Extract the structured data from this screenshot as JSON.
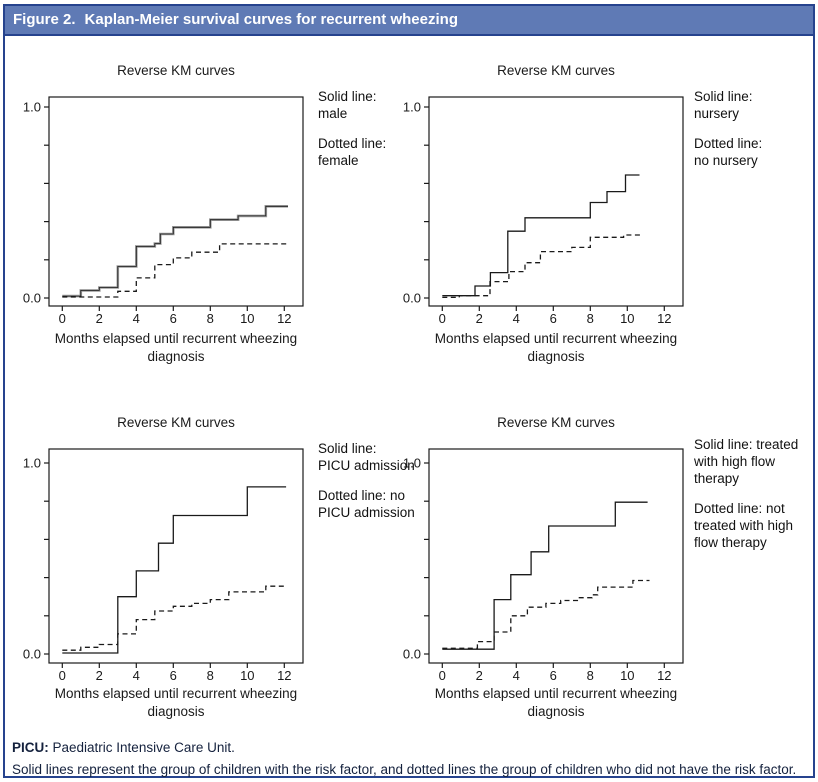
{
  "header": {
    "label": "Figure 2.",
    "title": "Kaplan-Meier survival curves for recurrent wheezing"
  },
  "footer": {
    "abbr_label": "PICU:",
    "abbr_text": "Paediatric Intensive Care Unit.",
    "note": "Solid lines represent the group of children with the risk factor, and dotted lines the group of children who did not have the risk factor."
  },
  "colors": {
    "header_bg": "#5F7AB5",
    "border_navy": "#26438E",
    "axis_black": "#1a1a1a",
    "solid_gray_highlight": "#9c9c9c",
    "text_dark": "#111111"
  },
  "chart_data": [
    {
      "id": "sex",
      "type": "line",
      "title": "Reverse KM curves",
      "xlabel": "Months elapsed until recurrent wheezing diagnosis",
      "xlabel_lines": [
        "Months elapsed until recurrent wheezing",
        "diagnosis"
      ],
      "xlim": [
        0,
        12.5
      ],
      "xticks": [
        0,
        2,
        4,
        6,
        8,
        10,
        12
      ],
      "ylim": [
        0,
        1
      ],
      "yticks": [
        0,
        0.2,
        0.4,
        0.6,
        0.8,
        1
      ],
      "ytick_labels": [
        "0.0",
        "",
        "",
        "",
        "",
        "1.0"
      ],
      "grid": false,
      "legend_position": "right",
      "legend": {
        "solid": "Solid line:\nmale",
        "dotted": "Dotted line:\nfemale"
      },
      "series": [
        {
          "name": "male",
          "style": "solid",
          "highlight": true,
          "points": [
            [
              0,
              0.01
            ],
            [
              1,
              0.04
            ],
            [
              2,
              0.055
            ],
            [
              3,
              0.165
            ],
            [
              4,
              0.27
            ],
            [
              5,
              0.285
            ],
            [
              5.3,
              0.335
            ],
            [
              6,
              0.37
            ],
            [
              8,
              0.41
            ],
            [
              9.5,
              0.43
            ],
            [
              11,
              0.48
            ]
          ],
          "end_x": 12.2
        },
        {
          "name": "female",
          "style": "dotted",
          "highlight": false,
          "points": [
            [
              0,
              0.005
            ],
            [
              3,
              0.035
            ],
            [
              4,
              0.105
            ],
            [
              5,
              0.175
            ],
            [
              6,
              0.21
            ],
            [
              7,
              0.24
            ],
            [
              8.5,
              0.283
            ]
          ],
          "end_x": 12.2
        }
      ]
    },
    {
      "id": "nursery",
      "type": "line",
      "title": "Reverse KM curves",
      "xlabel": "Months elapsed until recurrent wheezing diagnosis",
      "xlabel_lines": [
        "Months elapsed until recurrent wheezing",
        "diagnosis"
      ],
      "xlim": [
        0,
        12.5
      ],
      "xticks": [
        0,
        2,
        4,
        6,
        8,
        10,
        12
      ],
      "ylim": [
        0,
        1
      ],
      "yticks": [
        0,
        0.2,
        0.4,
        0.6,
        0.8,
        1
      ],
      "ytick_labels": [
        "0.0",
        "",
        "",
        "",
        "",
        "1.0"
      ],
      "grid": false,
      "legend_position": "right",
      "legend": {
        "solid": "Solid line:\nnursery",
        "dotted": "Dotted line:\nno nursery"
      },
      "series": [
        {
          "name": "nursery",
          "style": "solid",
          "highlight": false,
          "points": [
            [
              0,
              0.012
            ],
            [
              1.77,
              0.063
            ],
            [
              2.6,
              0.133
            ],
            [
              3.54,
              0.35
            ],
            [
              4.47,
              0.42
            ],
            [
              8,
              0.5
            ],
            [
              8.9,
              0.557
            ],
            [
              9.9,
              0.644
            ]
          ],
          "end_x": 10.66
        },
        {
          "name": "no nursery",
          "style": "dotted",
          "highlight": false,
          "points": [
            [
              0,
              0.003
            ],
            [
              0.92,
              0.012
            ],
            [
              2.58,
              0.086
            ],
            [
              3.6,
              0.138
            ],
            [
              4.47,
              0.185
            ],
            [
              5.3,
              0.243
            ],
            [
              7.0,
              0.265
            ],
            [
              8.0,
              0.318
            ],
            [
              9.8,
              0.33
            ]
          ],
          "end_x": 10.8
        }
      ]
    },
    {
      "id": "picu",
      "type": "line",
      "title": "Reverse KM curves",
      "xlabel": "Months elapsed until recurrent wheezing diagnosis",
      "xlabel_lines": [
        "Months elapsed until recurrent wheezing",
        "diagnosis"
      ],
      "xlim": [
        0,
        12.5
      ],
      "xticks": [
        0,
        2,
        4,
        6,
        8,
        10,
        12
      ],
      "ylim": [
        0,
        1
      ],
      "yticks": [
        0,
        0.2,
        0.4,
        0.6,
        0.8,
        1
      ],
      "ytick_labels": [
        "0.0",
        "",
        "",
        "",
        "",
        "1.0"
      ],
      "grid": false,
      "legend_position": "right",
      "legend": {
        "solid": "Solid line:\nPICU admission",
        "dotted": "Dotted line: no\nPICU admission"
      },
      "series": [
        {
          "name": "PICU admission",
          "style": "solid",
          "highlight": false,
          "points": [
            [
              0,
              0.005
            ],
            [
              3,
              0.3
            ],
            [
              4,
              0.435
            ],
            [
              5.2,
              0.58
            ],
            [
              6,
              0.725
            ],
            [
              10,
              0.875
            ]
          ],
          "end_x": 12.1
        },
        {
          "name": "no PICU admission",
          "style": "dotted",
          "highlight": false,
          "points": [
            [
              0,
              0.02
            ],
            [
              1,
              0.035
            ],
            [
              2,
              0.05
            ],
            [
              3,
              0.105
            ],
            [
              4,
              0.18
            ],
            [
              5,
              0.225
            ],
            [
              6,
              0.25
            ],
            [
              7,
              0.265
            ],
            [
              8,
              0.285
            ],
            [
              9,
              0.325
            ],
            [
              11,
              0.355
            ]
          ],
          "end_x": 12.1
        }
      ]
    },
    {
      "id": "high-flow",
      "type": "line",
      "title": "Reverse KM curves",
      "xlabel": "Months elapsed until recurrent wheezing diagnosis",
      "xlabel_lines": [
        "Months elapsed until recurrent wheezing",
        "diagnosis"
      ],
      "xlim": [
        0,
        12.5
      ],
      "xticks": [
        0,
        2,
        4,
        6,
        8,
        10,
        12
      ],
      "ylim": [
        0,
        1
      ],
      "yticks": [
        0,
        0.2,
        0.4,
        0.6,
        0.8,
        1
      ],
      "ytick_labels": [
        "0.0",
        "",
        "",
        "",
        "",
        "1.0"
      ],
      "grid": false,
      "legend_position": "right",
      "legend": {
        "solid": "Solid line: treated\nwith high flow\ntherapy",
        "dotted": "Dotted line: not\ntreated with high\nflow therapy"
      },
      "series": [
        {
          "name": "treated with high flow therapy",
          "style": "solid",
          "highlight": false,
          "points": [
            [
              0,
              0.025
            ],
            [
              2.8,
              0.285
            ],
            [
              3.7,
              0.415
            ],
            [
              4.8,
              0.535
            ],
            [
              5.75,
              0.67
            ],
            [
              9.35,
              0.795
            ]
          ],
          "end_x": 11.1
        },
        {
          "name": "not treated with high flow therapy",
          "style": "dotted",
          "highlight": false,
          "points": [
            [
              0,
              0.03
            ],
            [
              1.9,
              0.065
            ],
            [
              2.8,
              0.115
            ],
            [
              3.7,
              0.2
            ],
            [
              4.6,
              0.245
            ],
            [
              5.6,
              0.265
            ],
            [
              6.4,
              0.28
            ],
            [
              7.3,
              0.295
            ],
            [
              8.1,
              0.31
            ],
            [
              8.4,
              0.35
            ],
            [
              10.3,
              0.385
            ]
          ],
          "end_x": 11.2
        }
      ]
    }
  ]
}
